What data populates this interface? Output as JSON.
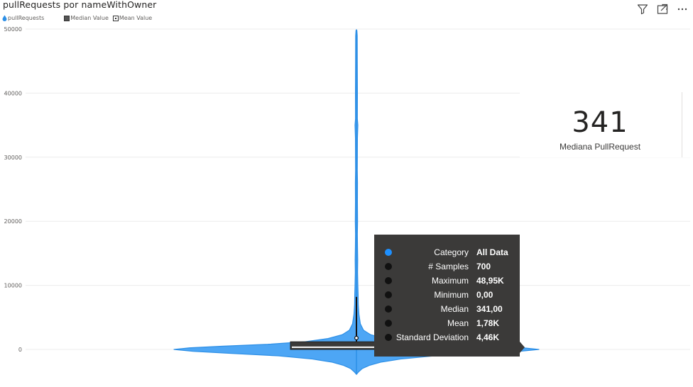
{
  "title": "pullRequests por nameWithOwner",
  "legend": {
    "series_label": "pullRequests",
    "median_label": "Median Value",
    "mean_label": "Mean Value"
  },
  "header_icons": [
    "filter-icon",
    "focus-mode-icon",
    "more-options-icon"
  ],
  "colors": {
    "violin_fill": "#4da6f5",
    "violin_stroke": "#2d8fe6",
    "tooltip_bg": "#3b3a39",
    "category_dot": "#1e90ff"
  },
  "chart_data": {
    "type": "violin",
    "title": "pullRequests por nameWithOwner",
    "series": [
      {
        "name": "pullRequests",
        "category": "All Data"
      }
    ],
    "y_ticks": [
      "50000",
      "40000",
      "30000",
      "20000",
      "10000",
      "0"
    ],
    "ylim": [
      -4000,
      50000
    ],
    "grid": true,
    "legend_position": "top-left",
    "stats": {
      "samples": 700,
      "maximum": 48950,
      "minimum": 0,
      "median": 341,
      "mean": 1780,
      "std_dev": 4460,
      "q1": 100,
      "q3": 1200,
      "whisker_high": 8200
    }
  },
  "card": {
    "value": "341",
    "label": "Mediana PullRequest"
  },
  "tooltip": {
    "rows": [
      {
        "label": "Category",
        "value": "All Data",
        "dot": "#1e90ff"
      },
      {
        "label": "# Samples",
        "value": "700",
        "dot": "#111111"
      },
      {
        "label": "Maximum",
        "value": "48,95K",
        "dot": "#111111"
      },
      {
        "label": "Minimum",
        "value": "0,00",
        "dot": "#111111"
      },
      {
        "label": "Median",
        "value": "341,00",
        "dot": "#111111"
      },
      {
        "label": "Mean",
        "value": "1,78K",
        "dot": "#111111"
      },
      {
        "label": "Standard Deviation",
        "value": "4,46K",
        "dot": "#111111"
      }
    ]
  }
}
